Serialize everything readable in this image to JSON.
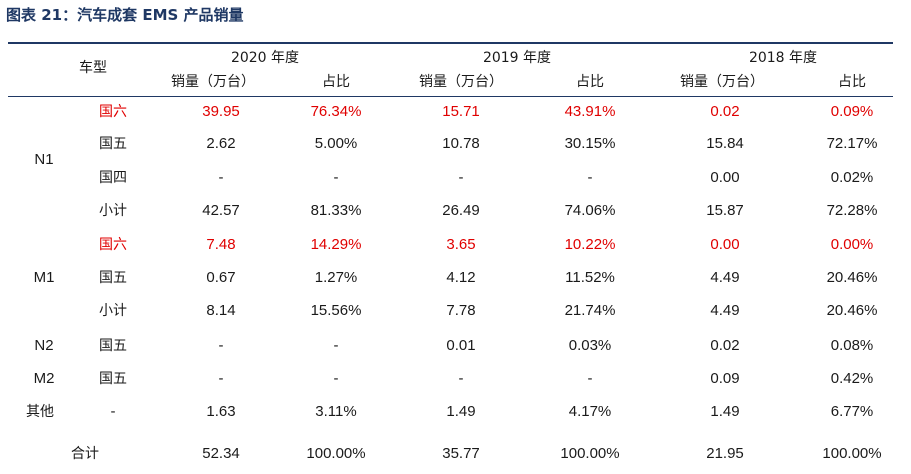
{
  "title": "图表 21：汽车成套 EMS 产品销量",
  "header": {
    "type_label": "车型",
    "years": [
      "2020 年度",
      "2019 年度",
      "2018 年度"
    ],
    "volume_label": "销量（万台）",
    "share_label": "占比"
  },
  "rows": [
    {
      "group": "N1",
      "sub": "国六",
      "vals": [
        "39.95",
        "76.34%",
        "15.71",
        "43.91%",
        "0.02",
        "0.09%"
      ],
      "red": true
    },
    {
      "group": "",
      "sub": "国五",
      "vals": [
        "2.62",
        "5.00%",
        "10.78",
        "30.15%",
        "15.84",
        "72.17%"
      ],
      "red": false
    },
    {
      "group": "",
      "sub": "国四",
      "vals": [
        "-",
        "-",
        "-",
        "-",
        "0.00",
        "0.02%"
      ],
      "red": false
    },
    {
      "group": "",
      "sub": "小计",
      "vals": [
        "42.57",
        "81.33%",
        "26.49",
        "74.06%",
        "15.87",
        "72.28%"
      ],
      "red": false
    },
    {
      "group": "M1",
      "sub": "国六",
      "vals": [
        "7.48",
        "14.29%",
        "3.65",
        "10.22%",
        "0.00",
        "0.00%"
      ],
      "red": true
    },
    {
      "group": "",
      "sub": "国五",
      "vals": [
        "0.67",
        "1.27%",
        "4.12",
        "11.52%",
        "4.49",
        "20.46%"
      ],
      "red": false
    },
    {
      "group": "",
      "sub": "小计",
      "vals": [
        "8.14",
        "15.56%",
        "7.78",
        "21.74%",
        "4.49",
        "20.46%"
      ],
      "red": false
    },
    {
      "group": "N2",
      "sub": "国五",
      "vals": [
        "-",
        "-",
        "0.01",
        "0.03%",
        "0.02",
        "0.08%"
      ],
      "red": false
    },
    {
      "group": "M2",
      "sub": "国五",
      "vals": [
        "-",
        "-",
        "-",
        "-",
        "0.09",
        "0.42%"
      ],
      "red": false
    },
    {
      "group": "其他",
      "sub": "-",
      "vals": [
        "1.63",
        "3.11%",
        "1.49",
        "4.17%",
        "1.49",
        "6.77%"
      ],
      "red": false
    },
    {
      "group": "",
      "sub": "合计",
      "vals": [
        "52.34",
        "100.00%",
        "35.77",
        "100.00%",
        "21.95",
        "100.00%"
      ],
      "red": false
    }
  ]
}
